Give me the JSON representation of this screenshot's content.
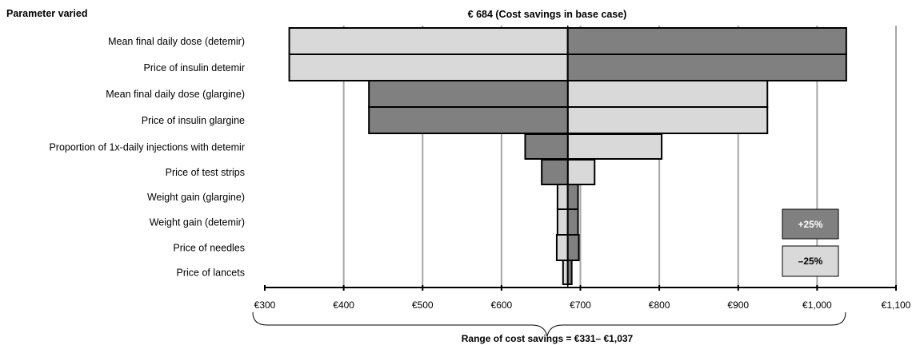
{
  "chart_data": {
    "type": "bar",
    "subtype": "tornado",
    "param_header": "Parameter varied",
    "title": "€ 684 (Cost  savings in base case)",
    "base_value": 684,
    "xlim": [
      300,
      1100
    ],
    "ticks": [
      300,
      400,
      500,
      600,
      700,
      800,
      900,
      1000,
      1100
    ],
    "tick_labels": [
      "€300",
      "€400",
      "€500",
      "€600",
      "€700",
      "€800",
      "€900",
      "€1,000",
      "€1,100"
    ],
    "grid": true,
    "range_label": "Range of  cost savings  =  €331– €1,037",
    "legend": {
      "position": "bottom-right",
      "items": [
        {
          "label": "+25%",
          "color": "#808080",
          "text_color": "#ffffff"
        },
        {
          "label": "–25%",
          "color": "#d9d9d9",
          "text_color": "#000000"
        }
      ]
    },
    "colors": {
      "plus": "#808080",
      "minus": "#d9d9d9"
    },
    "categories": [
      "Mean final daily dose (detemir)",
      "Price of insulin detemir",
      "Mean final daily dose (glargine)",
      "Price of insulin glargine",
      "Proportion of 1x-daily injections with detemir",
      "Price of test strips",
      "Weight gain (glargine)",
      "Weight gain (detemir)",
      "Price of needles",
      "Price of lancets"
    ],
    "series": [
      {
        "name": "+25%",
        "values": [
          1037,
          1037,
          432,
          432,
          630,
          651,
          697,
          697,
          698,
          689
        ]
      },
      {
        "name": "–25%",
        "values": [
          331,
          331,
          937,
          937,
          803,
          718,
          671,
          671,
          670,
          678
        ]
      }
    ]
  }
}
